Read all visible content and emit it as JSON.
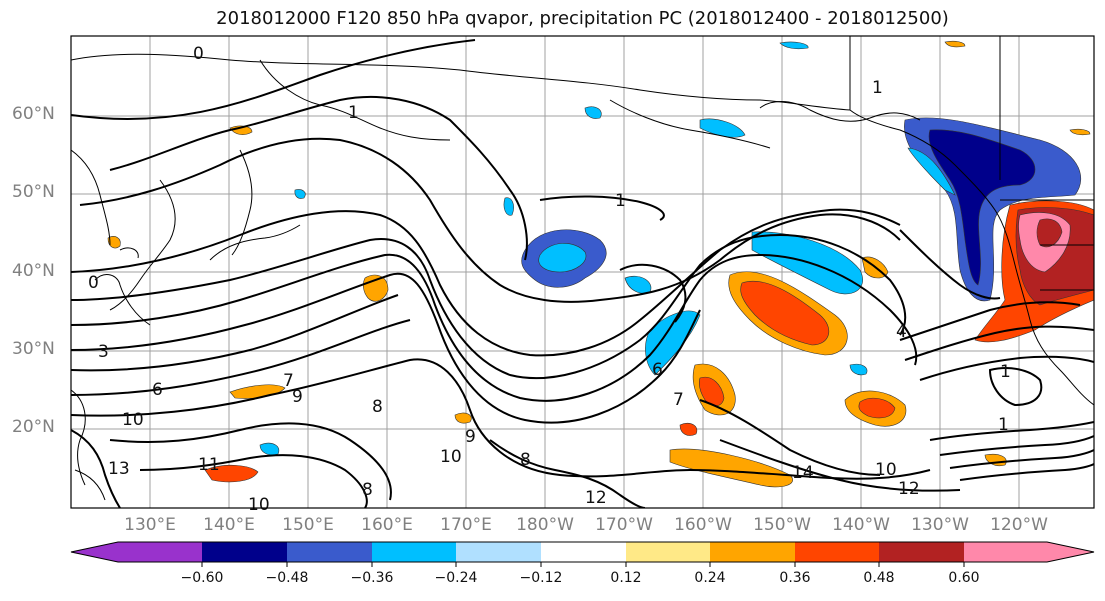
{
  "title": "2018012000 F120 850 hPa qvapor, precipitation PC (2018012400 - 2018012500)",
  "map": {
    "lat_labels": [
      "60°N",
      "50°N",
      "40°N",
      "30°N",
      "20°N"
    ],
    "lon_labels": [
      "130°E",
      "140°E",
      "150°E",
      "160°E",
      "170°E",
      "180°W",
      "170°W",
      "160°W",
      "150°W",
      "140°W",
      "130°W",
      "120°W"
    ],
    "gridlines": true,
    "contour_labels": [
      "0",
      "1",
      "1",
      "0",
      "3",
      "6",
      "7",
      "9",
      "10",
      "8",
      "11",
      "13",
      "10",
      "8",
      "9",
      "10",
      "8",
      "7",
      "6",
      "1",
      "14",
      "12",
      "10",
      "12",
      "4",
      "1",
      "1"
    ]
  },
  "colorbar": {
    "colors": [
      "#9932cc",
      "#00008b",
      "#3a5bcc",
      "#00bfff",
      "#b0e0ff",
      "#ffffff",
      "#ffe987",
      "#ffa500",
      "#ff4500",
      "#b22222",
      "#ff88aa"
    ],
    "tick_labels": [
      "−0.60",
      "−0.48",
      "−0.36",
      "−0.24",
      "−0.12",
      "0.12",
      "0.24",
      "0.36",
      "0.48",
      "0.60"
    ]
  }
}
